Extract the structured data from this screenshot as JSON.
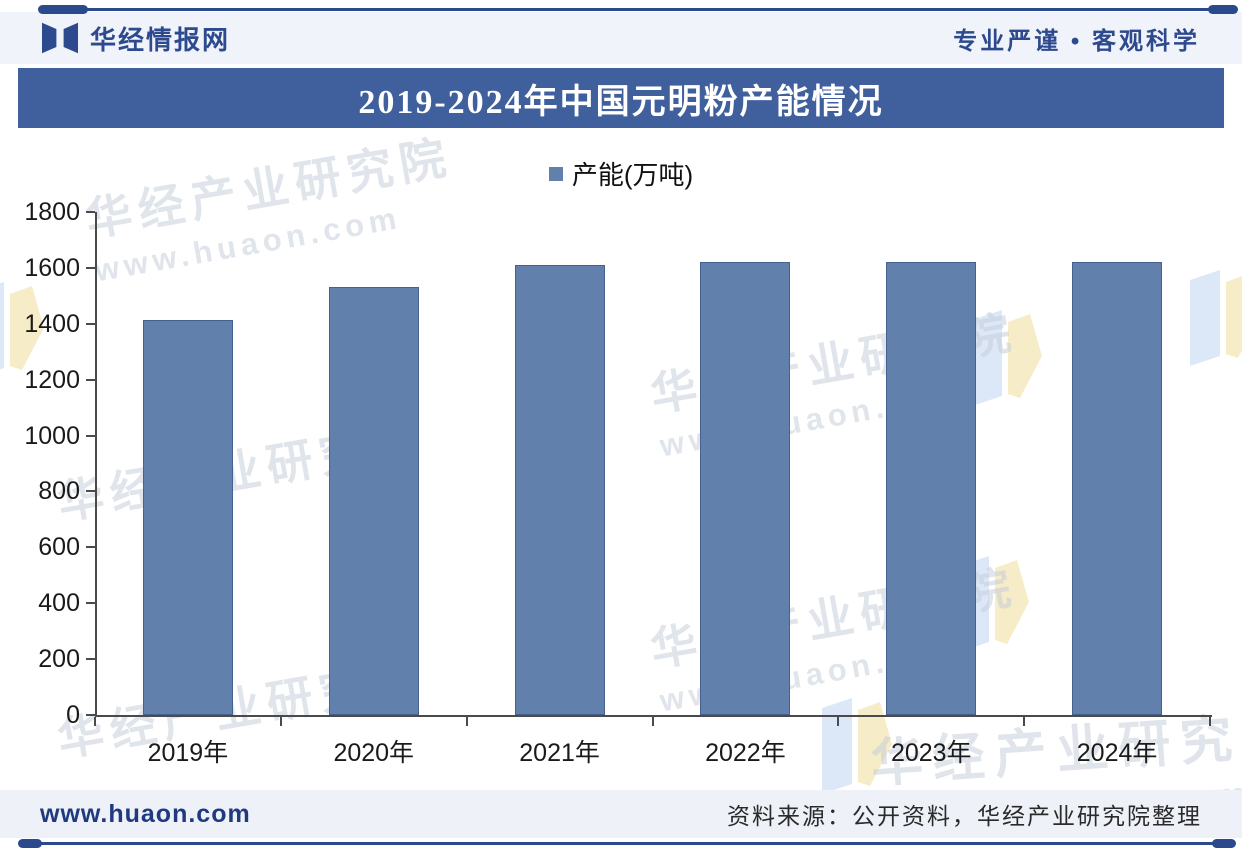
{
  "header": {
    "brand": "华经情报网",
    "slogan": "专业严谨 • 客观科学"
  },
  "title_bar": {
    "title": "2019-2024年中国元明粉产能情况"
  },
  "legend": {
    "label": "产能(万吨)"
  },
  "chart_data": {
    "type": "bar",
    "title": "2019-2024年中国元明粉产能情况",
    "categories": [
      "2019年",
      "2020年",
      "2021年",
      "2022年",
      "2023年",
      "2024年"
    ],
    "series": [
      {
        "name": "产能(万吨)",
        "values": [
          1413,
          1530,
          1610,
          1620,
          1620,
          1620
        ]
      }
    ],
    "xlabel": "",
    "ylabel": "",
    "ylim": [
      0,
      1800
    ],
    "ytick_step": 200,
    "grid": false,
    "legend_position": "top-center",
    "bar_color": "#6180ac",
    "bar_border_color": "#46618f"
  },
  "watermark": {
    "text": "华经产业研究院",
    "url": "www.huaon.com"
  },
  "footer": {
    "site": "www.huaon.com",
    "source": "资料来源：公开资料，华经产业研究院整理"
  },
  "colors": {
    "accent_navy": "#2b4a8b",
    "title_bar_bg": "#405f9d",
    "band_bg": "#f1f3fa",
    "bar_fill": "#6180ac",
    "bar_border": "#46618f",
    "watermark_gray": "#c7cedb"
  }
}
